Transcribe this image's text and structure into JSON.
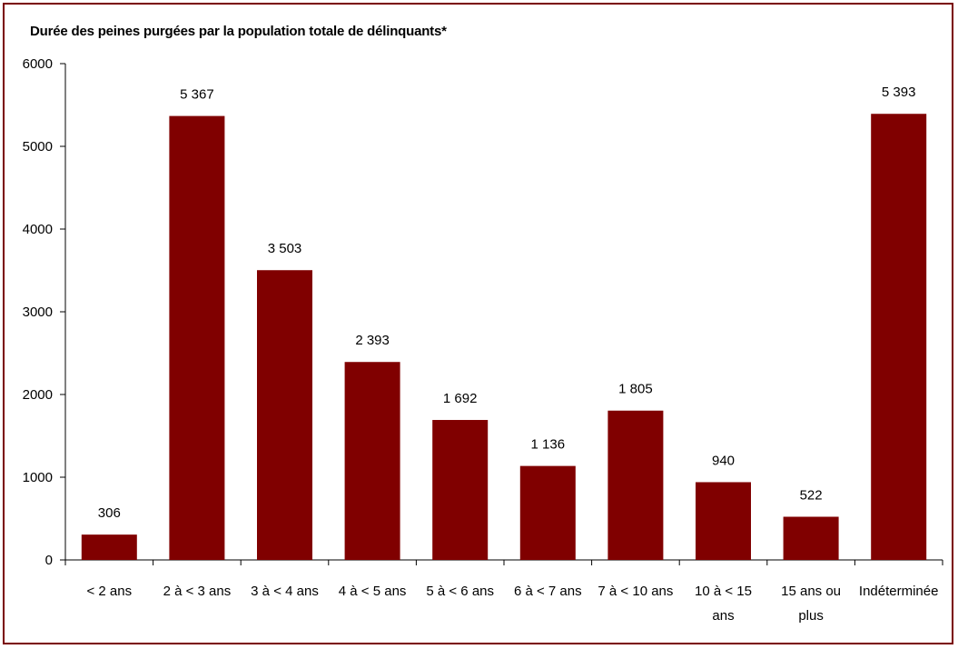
{
  "chart_data": {
    "type": "bar",
    "title": "Durée des peines purgées par la population totale de délinquants*",
    "categories": [
      [
        "< 2 ans"
      ],
      [
        "2 à < 3 ans"
      ],
      [
        "3 à < 4 ans"
      ],
      [
        "4 à < 5 ans"
      ],
      [
        "5 à < 6 ans"
      ],
      [
        "6 à < 7 ans"
      ],
      [
        "7 à < 10 ans"
      ],
      [
        "10 à < 15",
        "ans"
      ],
      [
        "15 ans ou",
        "plus"
      ],
      [
        "Indéterminée"
      ]
    ],
    "values": [
      306,
      5367,
      3503,
      2393,
      1692,
      1136,
      1805,
      940,
      522,
      5393
    ],
    "data_labels": [
      "306",
      "5 367",
      "3 503",
      "2 393",
      "1 692",
      "1 136",
      "1 805",
      "940",
      "522",
      "5 393"
    ],
    "yticks": [
      0,
      1000,
      2000,
      3000,
      4000,
      5000,
      6000
    ],
    "ylim": [
      0,
      6000
    ],
    "xlabel": "",
    "ylabel": "",
    "grid": false,
    "legend": false,
    "bar_color": "#800000",
    "border_color": "#7a0000"
  }
}
